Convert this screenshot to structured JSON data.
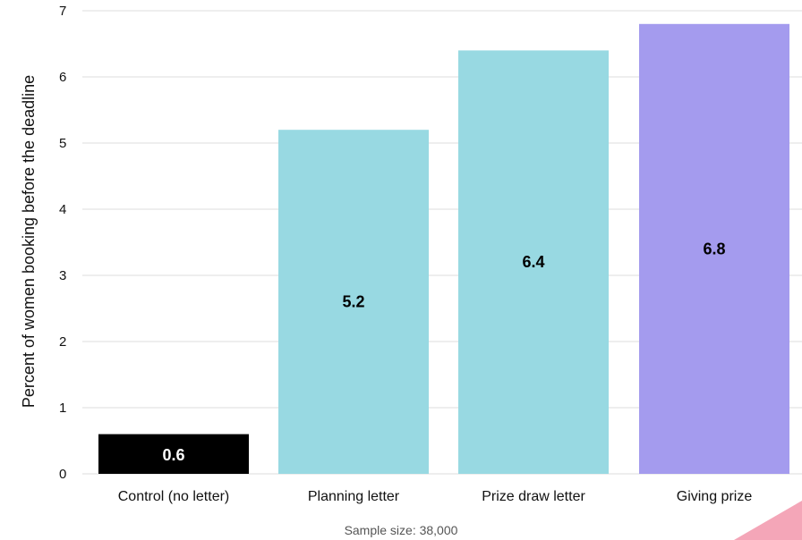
{
  "chart_data": {
    "type": "bar",
    "categories": [
      "Control (no letter)",
      "Planning letter",
      "Prize draw letter",
      "Giving prize"
    ],
    "values": [
      0.6,
      5.2,
      6.4,
      6.8
    ],
    "value_labels": [
      "0.6",
      "5.2",
      "6.4",
      "6.8"
    ],
    "title": "",
    "xlabel": "",
    "ylabel": "Percent of women booking before the deadline",
    "ylim": [
      0,
      7
    ],
    "yticks": [
      0,
      1,
      2,
      3,
      4,
      5,
      6,
      7
    ],
    "grid": true,
    "bar_colors": [
      "#000000",
      "#98d9e2",
      "#98d9e2",
      "#a49bee"
    ],
    "label_colors": [
      "#ffffff",
      "#000000",
      "#000000",
      "#000000"
    ],
    "note": "Sample size: 38,000",
    "decoration_color": "#f4a6b8"
  }
}
